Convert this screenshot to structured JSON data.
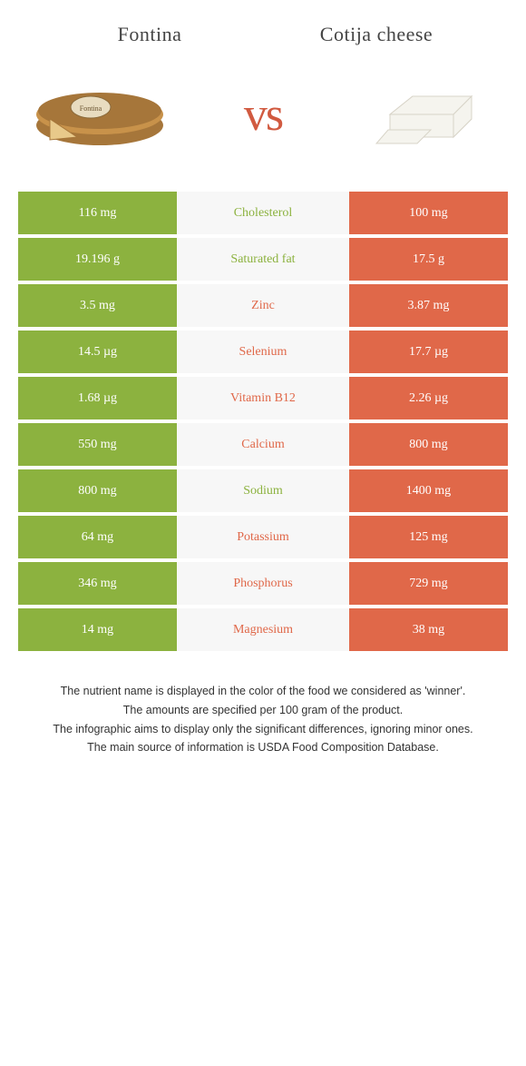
{
  "header": {
    "left_title": "Fontina",
    "right_title": "Cotija cheese"
  },
  "vs_label": "vs",
  "colors": {
    "left": "#8cb23f",
    "right": "#e06849",
    "mid_bg": "#f7f7f7",
    "vs_text": "#d15a40"
  },
  "table": {
    "rows": [
      {
        "nutrient": "Cholesterol",
        "left": "116 mg",
        "right": "100 mg",
        "winner": "left"
      },
      {
        "nutrient": "Saturated fat",
        "left": "19.196 g",
        "right": "17.5 g",
        "winner": "left"
      },
      {
        "nutrient": "Zinc",
        "left": "3.5 mg",
        "right": "3.87 mg",
        "winner": "right"
      },
      {
        "nutrient": "Selenium",
        "left": "14.5 µg",
        "right": "17.7 µg",
        "winner": "right"
      },
      {
        "nutrient": "Vitamin B12",
        "left": "1.68 µg",
        "right": "2.26 µg",
        "winner": "right"
      },
      {
        "nutrient": "Calcium",
        "left": "550 mg",
        "right": "800 mg",
        "winner": "right"
      },
      {
        "nutrient": "Sodium",
        "left": "800 mg",
        "right": "1400 mg",
        "winner": "left"
      },
      {
        "nutrient": "Potassium",
        "left": "64 mg",
        "right": "125 mg",
        "winner": "right"
      },
      {
        "nutrient": "Phosphorus",
        "left": "346 mg",
        "right": "729 mg",
        "winner": "right"
      },
      {
        "nutrient": "Magnesium",
        "left": "14 mg",
        "right": "38 mg",
        "winner": "right"
      }
    ]
  },
  "footnotes": [
    "The nutrient name is displayed in the color of the food we considered as 'winner'.",
    "The amounts are specified per 100 gram of the product.",
    "The infographic aims to display only the significant differences, ignoring minor ones.",
    "The main source of information is USDA Food Composition Database."
  ]
}
